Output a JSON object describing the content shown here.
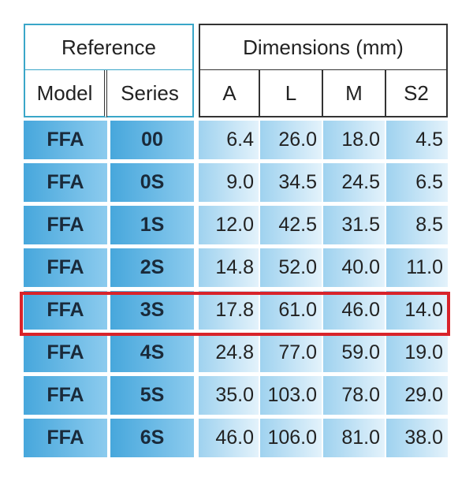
{
  "table": {
    "group_headers": [
      "Reference",
      "Dimensions (mm)"
    ],
    "columns": [
      "Model",
      "Series",
      "A",
      "L",
      "M",
      "S2"
    ],
    "rows": [
      [
        "FFA",
        "00",
        "6.4",
        "26.0",
        "18.0",
        "4.5"
      ],
      [
        "FFA",
        "0S",
        "9.0",
        "34.5",
        "24.5",
        "6.5"
      ],
      [
        "FFA",
        "1S",
        "12.0",
        "42.5",
        "31.5",
        "8.5"
      ],
      [
        "FFA",
        "2S",
        "14.8",
        "52.0",
        "40.0",
        "11.0"
      ],
      [
        "FFA",
        "3S",
        "17.8",
        "61.0",
        "46.0",
        "14.0"
      ],
      [
        "FFA",
        "4S",
        "24.8",
        "77.0",
        "59.0",
        "19.0"
      ],
      [
        "FFA",
        "5S",
        "35.0",
        "103.0",
        "78.0",
        "29.0"
      ],
      [
        "FFA",
        "6S",
        "46.0",
        "106.0",
        "81.0",
        "38.0"
      ]
    ]
  }
}
